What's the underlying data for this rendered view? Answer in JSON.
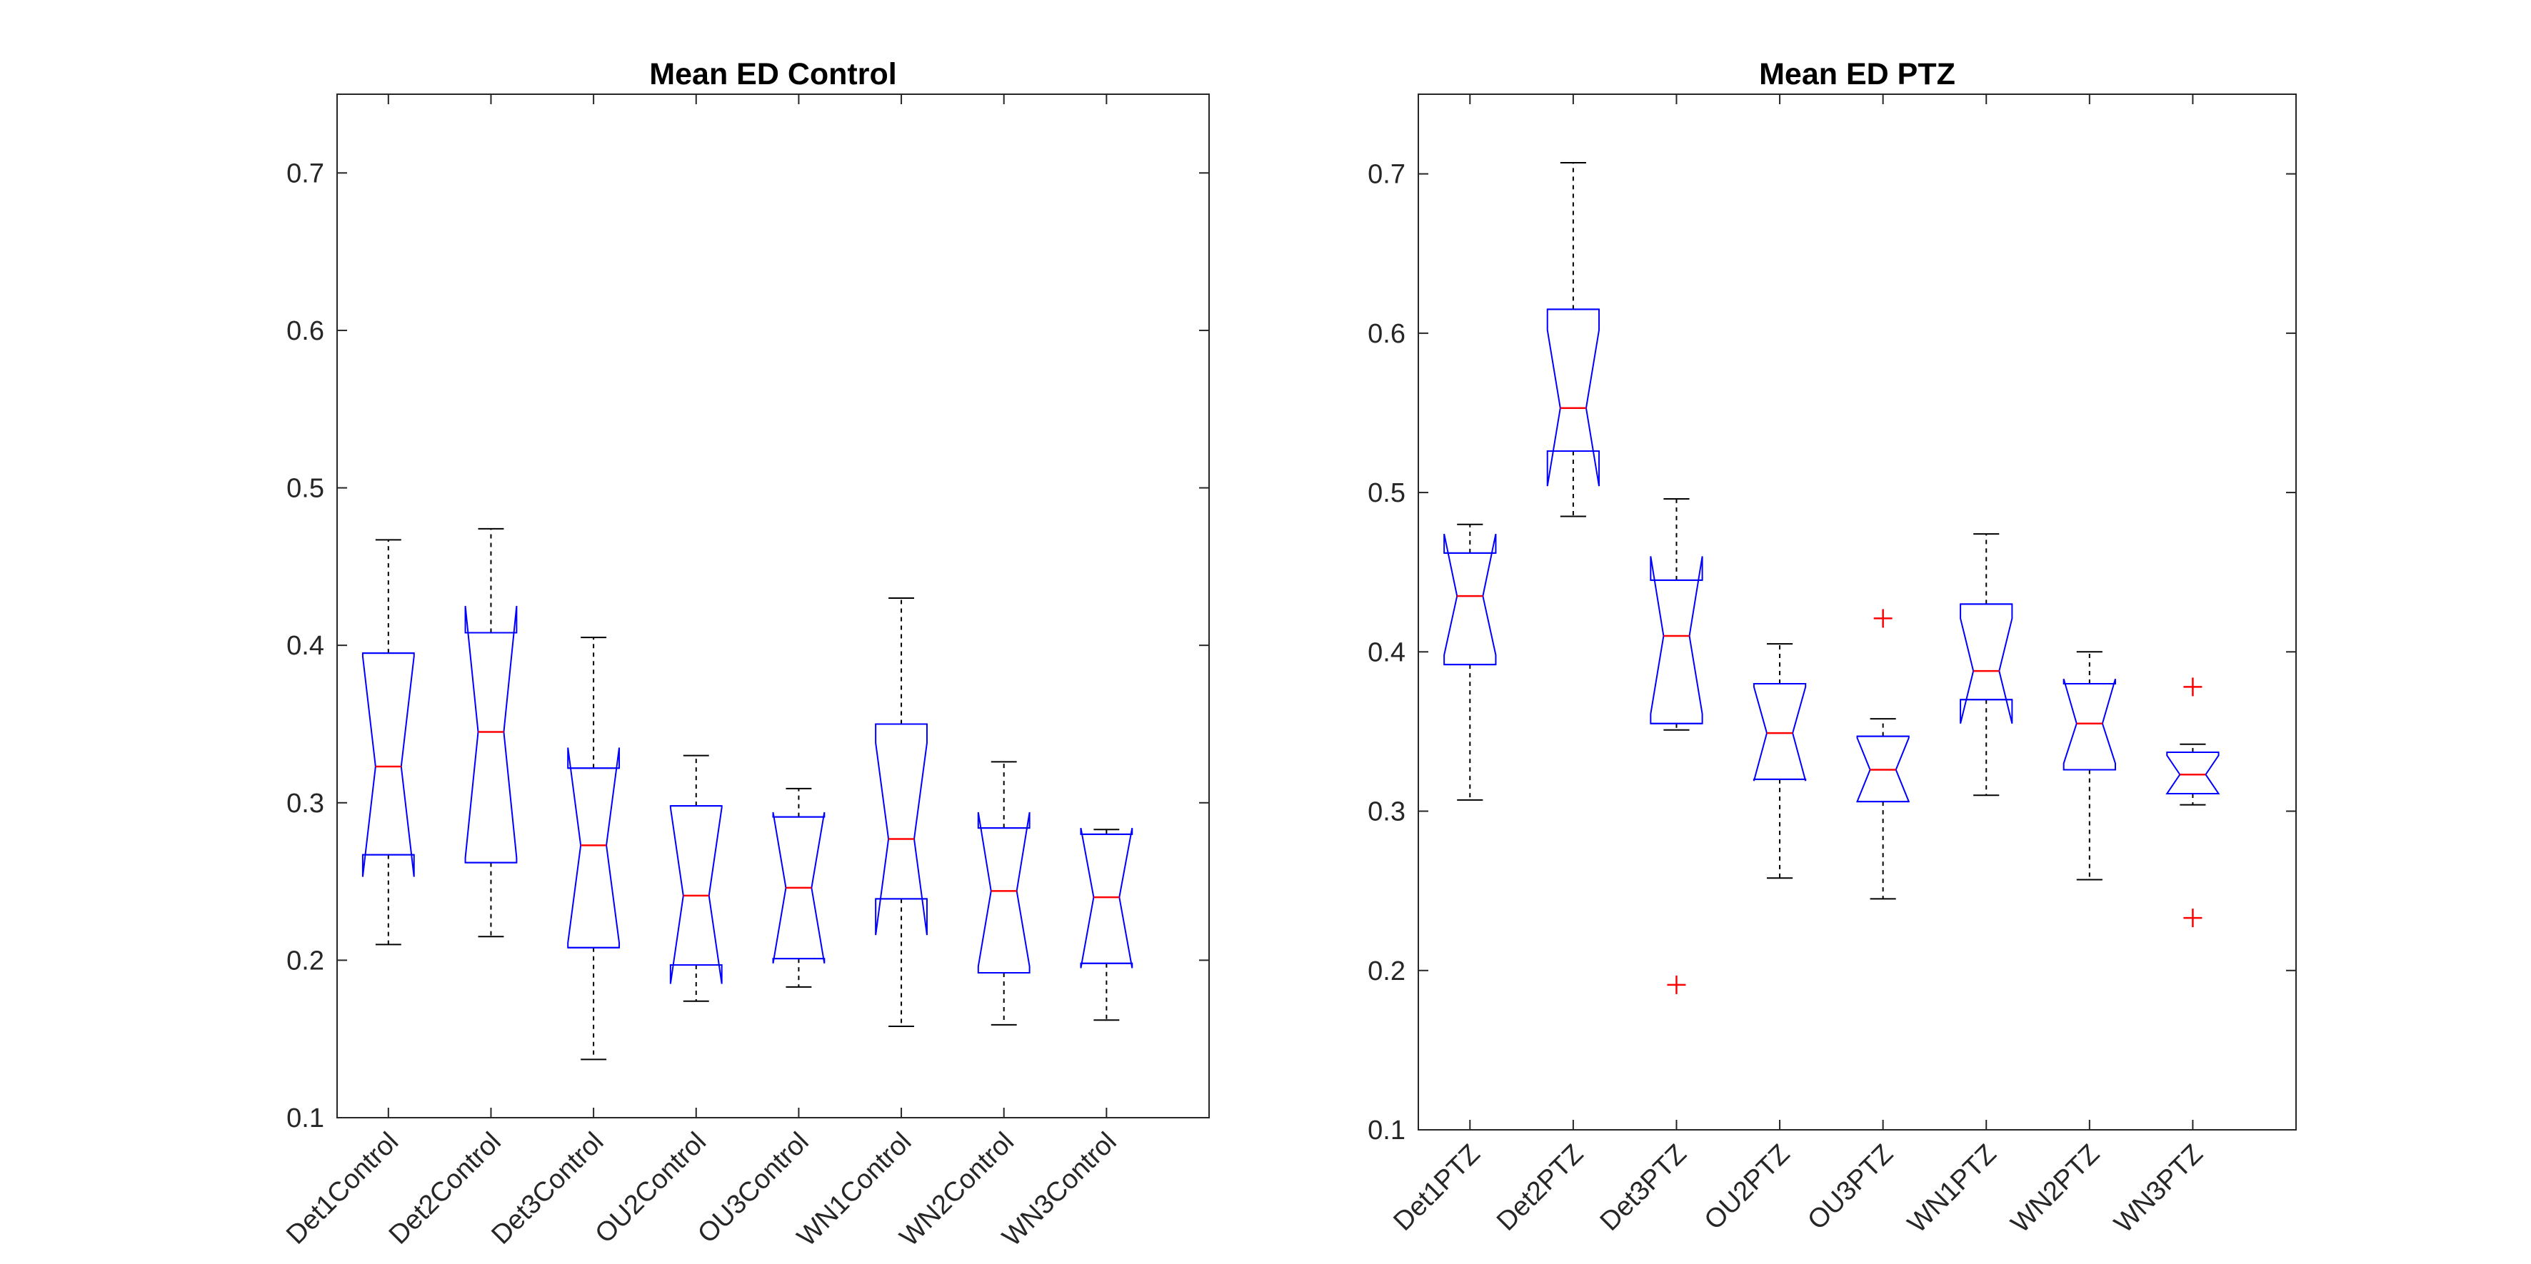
{
  "colors": {
    "box": "#0000ff",
    "median": "#ff0000",
    "whisker": "#000000",
    "outlier": "#ff0000",
    "axes": "#262626",
    "background": "#ffffff"
  },
  "chart_data": [
    {
      "type": "boxplot",
      "notched": true,
      "title": "Mean ED Control",
      "xlabel": "",
      "ylabel": "",
      "ylim": [
        0.1,
        0.75
      ],
      "yticks": [
        0.1,
        0.2,
        0.3,
        0.4,
        0.5,
        0.6,
        0.7
      ],
      "grid": false,
      "categories": [
        "Det1Control",
        "Det2Control",
        "Det3Control",
        "OU2Control",
        "OU3Control",
        "WN1Control",
        "WN2Control",
        "WN3Control"
      ],
      "boxes": [
        {
          "name": "Det1Control",
          "whisker_low": 0.21,
          "q1": 0.267,
          "median": 0.323,
          "q3": 0.395,
          "whisker_high": 0.467,
          "notch_low": 0.253,
          "notch_high": 0.393,
          "outliers": []
        },
        {
          "name": "Det2Control",
          "whisker_low": 0.215,
          "q1": 0.262,
          "median": 0.345,
          "q3": 0.408,
          "whisker_high": 0.474,
          "notch_low": 0.265,
          "notch_high": 0.425,
          "outliers": []
        },
        {
          "name": "Det3Control",
          "whisker_low": 0.137,
          "q1": 0.208,
          "median": 0.273,
          "q3": 0.322,
          "whisker_high": 0.405,
          "notch_low": 0.211,
          "notch_high": 0.335,
          "outliers": []
        },
        {
          "name": "OU2Control",
          "whisker_low": 0.174,
          "q1": 0.197,
          "median": 0.241,
          "q3": 0.298,
          "whisker_high": 0.33,
          "notch_low": 0.185,
          "notch_high": 0.297,
          "outliers": []
        },
        {
          "name": "OU3Control",
          "whisker_low": 0.183,
          "q1": 0.201,
          "median": 0.246,
          "q3": 0.291,
          "whisker_high": 0.309,
          "notch_low": 0.198,
          "notch_high": 0.294,
          "outliers": []
        },
        {
          "name": "WN1Control",
          "whisker_low": 0.158,
          "q1": 0.239,
          "median": 0.277,
          "q3": 0.35,
          "whisker_high": 0.43,
          "notch_low": 0.216,
          "notch_high": 0.338,
          "outliers": []
        },
        {
          "name": "WN2Control",
          "whisker_low": 0.159,
          "q1": 0.192,
          "median": 0.244,
          "q3": 0.284,
          "whisker_high": 0.326,
          "notch_low": 0.196,
          "notch_high": 0.294,
          "outliers": []
        },
        {
          "name": "WN3Control",
          "whisker_low": 0.162,
          "q1": 0.198,
          "median": 0.24,
          "q3": 0.28,
          "whisker_high": 0.283,
          "notch_low": 0.195,
          "notch_high": 0.284,
          "outliers": []
        }
      ]
    },
    {
      "type": "boxplot",
      "notched": true,
      "title": "Mean ED PTZ",
      "xlabel": "",
      "ylabel": "",
      "ylim": [
        0.1,
        0.75
      ],
      "yticks": [
        0.1,
        0.2,
        0.3,
        0.4,
        0.5,
        0.6,
        0.7
      ],
      "grid": false,
      "categories": [
        "Det1PTZ",
        "Det2PTZ",
        "Det3PTZ",
        "OU2PTZ",
        "OU3PTZ",
        "WN1PTZ",
        "WN2PTZ",
        "WN3PTZ"
      ],
      "boxes": [
        {
          "name": "Det1PTZ",
          "whisker_low": 0.307,
          "q1": 0.392,
          "median": 0.435,
          "q3": 0.462,
          "whisker_high": 0.48,
          "notch_low": 0.398,
          "notch_high": 0.474,
          "outliers": []
        },
        {
          "name": "Det2PTZ",
          "whisker_low": 0.485,
          "q1": 0.526,
          "median": 0.553,
          "q3": 0.615,
          "whisker_high": 0.707,
          "notch_low": 0.504,
          "notch_high": 0.602,
          "outliers": []
        },
        {
          "name": "Det3PTZ",
          "whisker_low": 0.351,
          "q1": 0.355,
          "median": 0.41,
          "q3": 0.445,
          "whisker_high": 0.496,
          "notch_low": 0.361,
          "notch_high": 0.46,
          "outliers": [
            0.191
          ]
        },
        {
          "name": "OU2PTZ",
          "whisker_low": 0.258,
          "q1": 0.32,
          "median": 0.349,
          "q3": 0.38,
          "whisker_high": 0.405,
          "notch_low": 0.319,
          "notch_high": 0.378,
          "outliers": []
        },
        {
          "name": "OU3PTZ",
          "whisker_low": 0.245,
          "q1": 0.306,
          "median": 0.326,
          "q3": 0.347,
          "whisker_high": 0.358,
          "notch_low": 0.306,
          "notch_high": 0.346,
          "outliers": [
            0.421
          ]
        },
        {
          "name": "WN1PTZ",
          "whisker_low": 0.31,
          "q1": 0.37,
          "median": 0.388,
          "q3": 0.43,
          "whisker_high": 0.474,
          "notch_low": 0.355,
          "notch_high": 0.421,
          "outliers": []
        },
        {
          "name": "WN2PTZ",
          "whisker_low": 0.257,
          "q1": 0.326,
          "median": 0.355,
          "q3": 0.38,
          "whisker_high": 0.4,
          "notch_low": 0.33,
          "notch_high": 0.383,
          "outliers": []
        },
        {
          "name": "WN3PTZ",
          "whisker_low": 0.304,
          "q1": 0.311,
          "median": 0.323,
          "q3": 0.337,
          "whisker_high": 0.342,
          "notch_low": 0.311,
          "notch_high": 0.335,
          "outliers": [
            0.378,
            0.233
          ]
        }
      ]
    }
  ]
}
